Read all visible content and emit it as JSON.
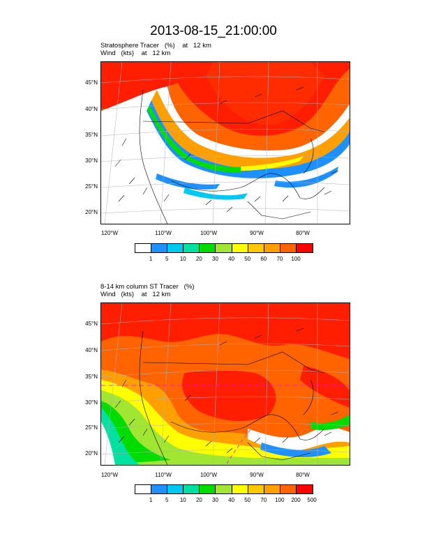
{
  "title": "2013-08-15_21:00:00",
  "panels": [
    {
      "line1": "Stratosphere Tracer   (%)    at   12 km",
      "line2": "Wind   (kts)    at   12 km",
      "lat_labels": [
        "45°N",
        "40°N",
        "35°N",
        "30°N",
        "25°N",
        "20°N"
      ],
      "lon_labels": [
        "120°W",
        "110°W",
        "100°W",
        "90°W",
        "80°W"
      ],
      "colorbar_labels": [
        "1",
        "5",
        "10",
        "20",
        "30",
        "40",
        "50",
        "60",
        "70",
        "100"
      ]
    },
    {
      "line1": "8-14 km column ST Tracer   (%)",
      "line2": "Wind   (kts)    at   12 km",
      "lat_labels": [
        "45°N",
        "40°N",
        "35°N",
        "30°N",
        "25°N",
        "20°N"
      ],
      "lon_labels": [
        "120°W",
        "110°W",
        "100°W",
        "90°W",
        "80°W"
      ],
      "colorbar_labels": [
        "1",
        "5",
        "10",
        "20",
        "30",
        "40",
        "50",
        "70",
        "100",
        "200",
        "500"
      ]
    }
  ],
  "colorbar_colors": [
    "#ffffff",
    "#1e90ff",
    "#00c8f0",
    "#00e0a0",
    "#00dc00",
    "#a0e632",
    "#ffff00",
    "#ffc800",
    "#ffa000",
    "#ff6400",
    "#ff0000"
  ]
}
